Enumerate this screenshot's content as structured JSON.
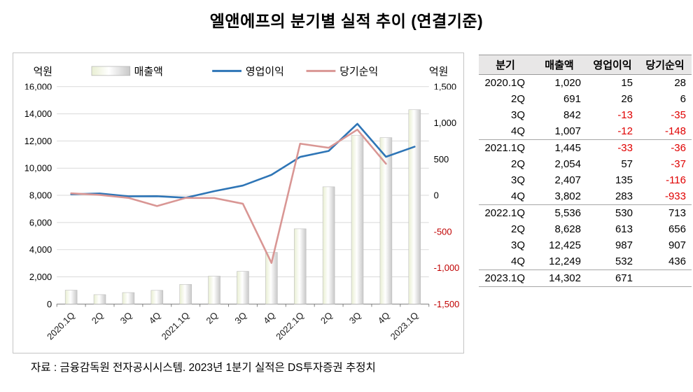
{
  "title": "엘앤에프의 분기별 실적 추이 (연결기준)",
  "source_note": "자료 : 금융감독원 전자공시시스템. 2023년 1분기 실적은 DS투자증권 추정치",
  "chart_data": {
    "type": "combo",
    "categories": [
      "2020.1Q",
      "2Q",
      "3Q",
      "4Q",
      "2021.1Q",
      "2Q",
      "3Q",
      "4Q",
      "2022.1Q",
      "2Q",
      "3Q",
      "4Q",
      "2023.1Q"
    ],
    "series": [
      {
        "name": "매출액",
        "type": "bar",
        "axis": "left",
        "values": [
          1020,
          691,
          842,
          1007,
          1445,
          2054,
          2407,
          3802,
          5536,
          8628,
          12425,
          12249,
          14302
        ],
        "gradient": [
          "#e9efd3",
          "#ffffff",
          "#c8c8c8"
        ]
      },
      {
        "name": "영업이익",
        "type": "line",
        "axis": "right",
        "color": "#2e75b6",
        "values": [
          15,
          26,
          -13,
          -12,
          -33,
          57,
          135,
          283,
          530,
          613,
          987,
          532,
          671
        ]
      },
      {
        "name": "당기순익",
        "type": "line",
        "axis": "right",
        "color": "#d99694",
        "values": [
          28,
          6,
          -35,
          -148,
          -36,
          -37,
          -116,
          -933,
          713,
          656,
          907,
          436,
          null
        ]
      }
    ],
    "left_axis": {
      "label": "억원",
      "min": 0,
      "max": 16000,
      "step": 2000
    },
    "right_axis": {
      "label": "억원",
      "min": -1500,
      "max": 1500,
      "step": 500,
      "negative_color": "#c00000"
    },
    "grid": true,
    "legend_position": "top"
  },
  "table": {
    "headers": [
      "분기",
      "매출액",
      "영업이익",
      "당기순익"
    ],
    "rows": [
      [
        "2020.1Q",
        "1,020",
        "15",
        "28"
      ],
      [
        "2Q",
        "691",
        "26",
        "6"
      ],
      [
        "3Q",
        "842",
        "-13",
        "-35"
      ],
      [
        "4Q",
        "1,007",
        "-12",
        "-148"
      ],
      [
        "2021.1Q",
        "1,445",
        "-33",
        "-36"
      ],
      [
        "2Q",
        "2,054",
        "57",
        "-37"
      ],
      [
        "3Q",
        "2,407",
        "135",
        "-116"
      ],
      [
        "4Q",
        "3,802",
        "283",
        "-933"
      ],
      [
        "2022.1Q",
        "5,536",
        "530",
        "713"
      ],
      [
        "2Q",
        "8,628",
        "613",
        "656"
      ],
      [
        "3Q",
        "12,425",
        "987",
        "907"
      ],
      [
        "4Q",
        "12,249",
        "532",
        "436"
      ],
      [
        "2023.1Q",
        "14,302",
        "671",
        ""
      ]
    ],
    "group_start_rows": [
      4,
      8,
      12
    ]
  }
}
